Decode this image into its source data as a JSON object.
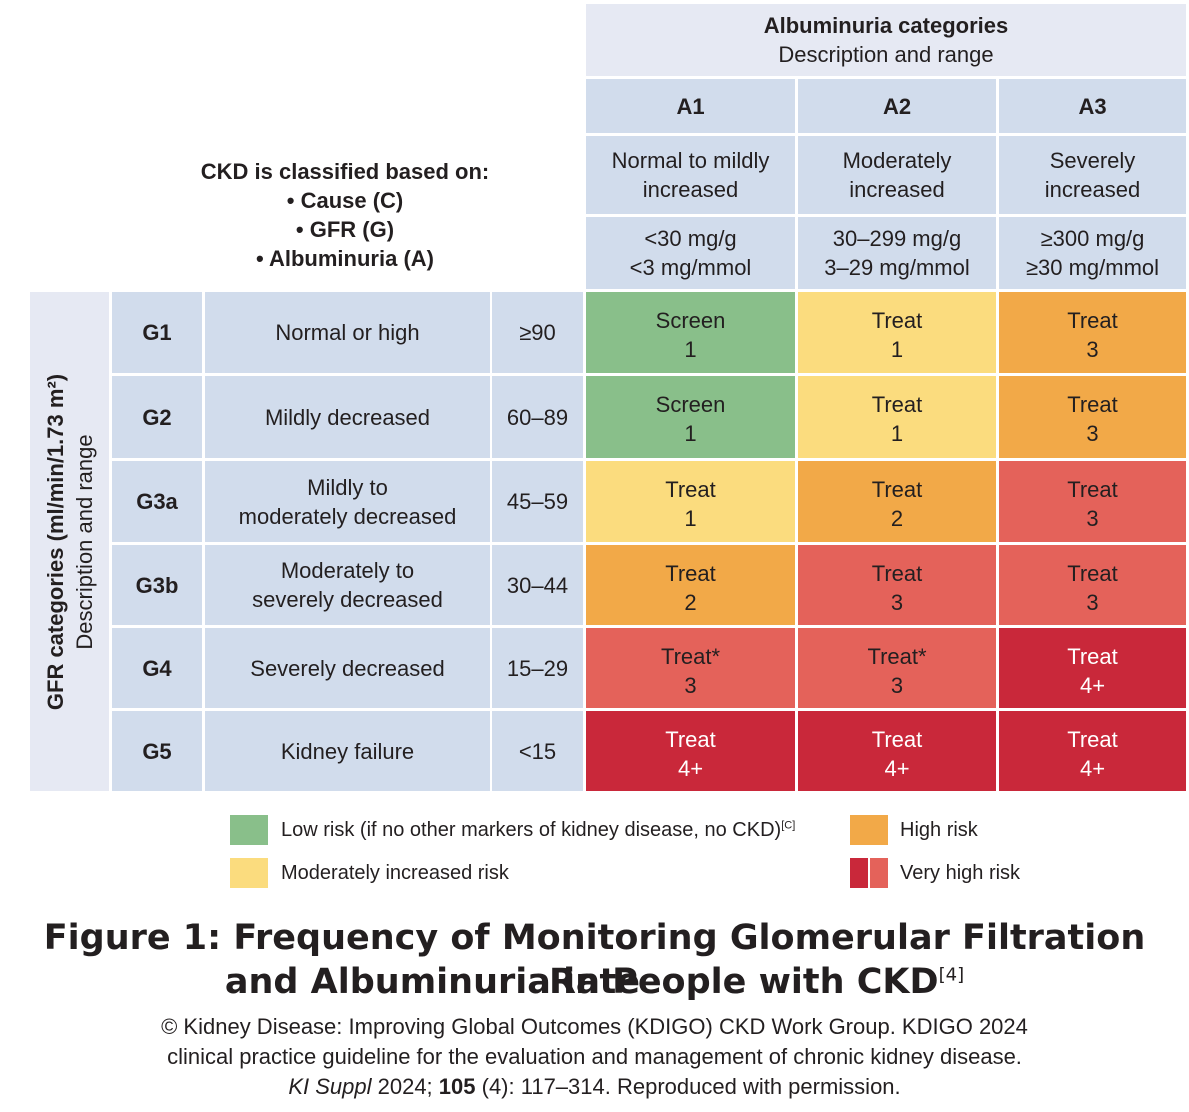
{
  "albuminuria_header": {
    "title": "Albuminuria categories",
    "subtitle": "Description and range"
  },
  "classification": {
    "heading": "CKD is classified based on:",
    "items": [
      "• Cause (C)",
      "• GFR (G)",
      "• Albuminuria (A)"
    ]
  },
  "columns": [
    {
      "code": "A1",
      "desc": [
        "Normal to mildly",
        "increased"
      ],
      "range": [
        "<30 mg/g",
        "<3 mg/mmol"
      ]
    },
    {
      "code": "A2",
      "desc": [
        "Moderately",
        "increased"
      ],
      "range": [
        "30–299 mg/g",
        "3–29 mg/mmol"
      ]
    },
    {
      "code": "A3",
      "desc": [
        "Severely",
        "increased"
      ],
      "range": [
        "≥300 mg/g",
        "≥30 mg/mmol"
      ]
    }
  ],
  "gfr_header": {
    "title": "GFR categories (ml/min/1.73 m²)",
    "subtitle": "Description and range"
  },
  "rows": [
    {
      "code": "G1",
      "desc": [
        "Normal or high"
      ],
      "range": "≥90",
      "cells": [
        {
          "text": [
            "Screen",
            "1"
          ],
          "risk": "low"
        },
        {
          "text": [
            "Treat",
            "1"
          ],
          "risk": "moderate"
        },
        {
          "text": [
            "Treat",
            "3"
          ],
          "risk": "high"
        }
      ]
    },
    {
      "code": "G2",
      "desc": [
        "Mildly decreased"
      ],
      "range": "60–89",
      "cells": [
        {
          "text": [
            "Screen",
            "1"
          ],
          "risk": "low"
        },
        {
          "text": [
            "Treat",
            "1"
          ],
          "risk": "moderate"
        },
        {
          "text": [
            "Treat",
            "3"
          ],
          "risk": "high"
        }
      ]
    },
    {
      "code": "G3a",
      "desc": [
        "Mildly to",
        "moderately decreased"
      ],
      "range": "45–59",
      "cells": [
        {
          "text": [
            "Treat",
            "1"
          ],
          "risk": "moderate"
        },
        {
          "text": [
            "Treat",
            "2"
          ],
          "risk": "high"
        },
        {
          "text": [
            "Treat",
            "3"
          ],
          "risk": "very_high_light"
        }
      ]
    },
    {
      "code": "G3b",
      "desc": [
        "Moderately to",
        "severely decreased"
      ],
      "range": "30–44",
      "cells": [
        {
          "text": [
            "Treat",
            "2"
          ],
          "risk": "high"
        },
        {
          "text": [
            "Treat",
            "3"
          ],
          "risk": "very_high_light"
        },
        {
          "text": [
            "Treat",
            "3"
          ],
          "risk": "very_high_light"
        }
      ]
    },
    {
      "code": "G4",
      "desc": [
        "Severely decreased"
      ],
      "range": "15–29",
      "cells": [
        {
          "text": [
            "Treat*",
            "3"
          ],
          "risk": "very_high_light"
        },
        {
          "text": [
            "Treat*",
            "3"
          ],
          "risk": "very_high_light"
        },
        {
          "text": [
            "Treat",
            "4+"
          ],
          "risk": "very_high_dark"
        }
      ]
    },
    {
      "code": "G5",
      "desc": [
        "Kidney failure"
      ],
      "range": "<15",
      "cells": [
        {
          "text": [
            "Treat",
            "4+"
          ],
          "risk": "very_high_dark"
        },
        {
          "text": [
            "Treat",
            "4+"
          ],
          "risk": "very_high_dark"
        },
        {
          "text": [
            "Treat",
            "4+"
          ],
          "risk": "very_high_dark"
        }
      ]
    }
  ],
  "risk_colors": {
    "low": "#89bf8a",
    "moderate": "#fbdc7e",
    "high": "#f2a948",
    "very_high_light": "#e4625a",
    "very_high_dark": "#c9283a"
  },
  "legend": {
    "low": "Low risk (if no other markers of kidney disease, no CKD)",
    "low_ref": "[C]",
    "moderate": "Moderately increased risk",
    "high": "High risk",
    "very_high": "Very high risk"
  },
  "caption": {
    "title_line1": "Figure 1: Frequency of Monitoring Glomerular Filtration Rate",
    "title_line2": "and Albuminuria in People with CKD",
    "title_ref": "[4]",
    "source_line1": "© Kidney Disease: Improving Global Outcomes (KDIGO) CKD Work Group. KDIGO 2024",
    "source_line2": "clinical practice guideline for the evaluation and management of chronic kidney disease.",
    "source_journal": "KI Suppl",
    "source_year": " 2024; ",
    "source_volume": "105",
    "source_rest": " (4): 117–314. Reproduced with permission."
  }
}
